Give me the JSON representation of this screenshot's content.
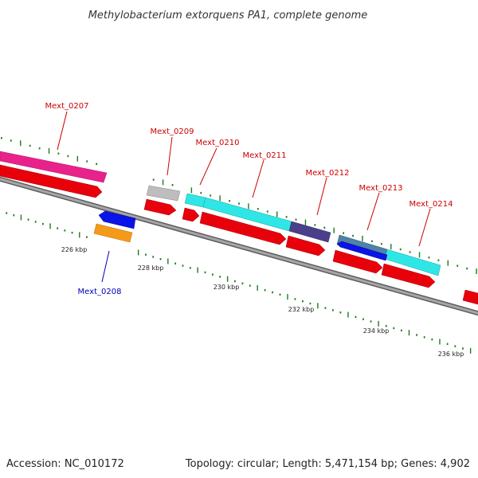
{
  "title": "Methylobacterium extorquens PA1, complete genome",
  "footer": {
    "accession": "Accession: NC_010172",
    "summary": "Topology: circular; Length: 5,471,154 bp; Genes: 4,902"
  },
  "colors": {
    "backbone": "#8c8c8c",
    "tick": "#1e7a1e",
    "label_red": "#cc0000",
    "label_blue": "#0000bb",
    "cds_red": "#e8000b",
    "magenta": "#e8228a",
    "cyan": "#22e8e8",
    "grey": "#b8b8b8",
    "navy": "#4a3f8a",
    "slate": "#4a7fa0",
    "blue": "#0a14e8",
    "orange": "#f59a18"
  },
  "scale_labels": [
    "226 kbp",
    "228 kbp",
    "230 kbp",
    "232 kbp",
    "234 kbp",
    "236 kbp"
  ],
  "gene_labels": [
    {
      "text": "Mext_0207",
      "color": "label_red"
    },
    {
      "text": "Mext_0208",
      "color": "label_blue"
    },
    {
      "text": "Mext_0209",
      "color": "label_red"
    },
    {
      "text": "Mext_0210",
      "color": "label_red"
    },
    {
      "text": "Mext_0211",
      "color": "label_red"
    },
    {
      "text": "Mext_0212",
      "color": "label_red"
    },
    {
      "text": "Mext_0213",
      "color": "label_red"
    },
    {
      "text": "Mext_0214",
      "color": "label_red"
    }
  ]
}
